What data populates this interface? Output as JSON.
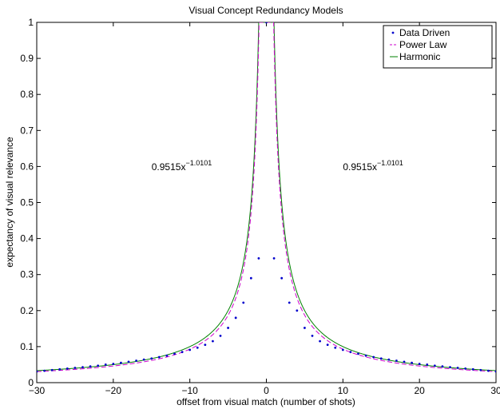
{
  "chart_data": {
    "type": "line",
    "title": "Visual Concept Redundancy Models",
    "xlabel": "offset from visual match (number of shots)",
    "ylabel": "expectancy of visual relevance",
    "xlim": [
      -30,
      30
    ],
    "ylim": [
      0,
      1
    ],
    "xticks": [
      -30,
      -20,
      -10,
      0,
      10,
      20,
      30
    ],
    "yticks": [
      0,
      0.1,
      0.2,
      0.3,
      0.4,
      0.5,
      0.6,
      0.7,
      0.8,
      0.9,
      1
    ],
    "grid": false,
    "legend": "top-right",
    "x": [
      -30,
      -29,
      -28,
      -27,
      -26,
      -25,
      -24,
      -23,
      -22,
      -21,
      -20,
      -19,
      -18,
      -17,
      -16,
      -15,
      -14,
      -13,
      -12,
      -11,
      -10,
      -9,
      -8,
      -7,
      -6,
      -5,
      -4,
      -3,
      -2,
      -1,
      0,
      1,
      2,
      3,
      4,
      5,
      6,
      7,
      8,
      9,
      10,
      11,
      12,
      13,
      14,
      15,
      16,
      17,
      18,
      19,
      20,
      21,
      22,
      23,
      24,
      25,
      26,
      27,
      28,
      29,
      30
    ],
    "series": [
      {
        "name": "Data Driven",
        "style": "dots",
        "color": "#0000cc",
        "values": [
          0.031,
          0.033,
          0.035,
          0.037,
          0.039,
          0.041,
          0.043,
          0.045,
          0.047,
          0.05,
          0.052,
          0.055,
          0.058,
          0.061,
          0.064,
          0.067,
          0.071,
          0.075,
          0.08,
          0.085,
          0.091,
          0.097,
          0.105,
          0.115,
          0.13,
          0.152,
          0.18,
          0.222,
          0.29,
          0.345,
          1.0,
          0.345,
          0.29,
          0.222,
          0.2,
          0.152,
          0.13,
          0.115,
          0.105,
          0.097,
          0.091,
          0.085,
          0.08,
          0.075,
          0.071,
          0.067,
          0.064,
          0.061,
          0.058,
          0.055,
          0.052,
          0.05,
          0.047,
          0.045,
          0.043,
          0.041,
          0.039,
          0.037,
          0.035,
          0.033,
          0.031
        ]
      },
      {
        "name": "Power Law",
        "style": "dashed",
        "color": "#cc00cc"
      },
      {
        "name": "Harmonic",
        "style": "solid",
        "color": "#008000"
      }
    ],
    "annotations": [
      {
        "text": "0.9515x",
        "exponent": "−1.0101",
        "x": -15,
        "y": 0.59
      },
      {
        "text": "0.9515x",
        "exponent": "−1.0101",
        "x": 10,
        "y": 0.59
      }
    ]
  }
}
